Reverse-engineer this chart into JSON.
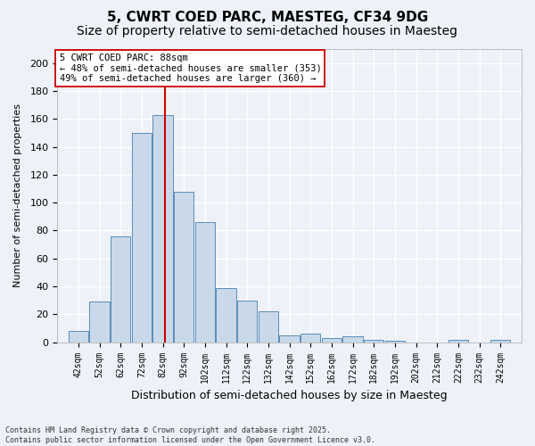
{
  "title1": "5, CWRT COED PARC, MAESTEG, CF34 9DG",
  "title2": "Size of property relative to semi-detached houses in Maesteg",
  "xlabel": "Distribution of semi-detached houses by size in Maesteg",
  "ylabel": "Number of semi-detached properties",
  "bins": [
    42,
    52,
    62,
    72,
    82,
    92,
    102,
    112,
    122,
    132,
    142,
    152,
    162,
    172,
    182,
    192,
    202,
    212,
    222,
    232,
    242
  ],
  "bin_labels": [
    "42sqm",
    "52sqm",
    "62sqm",
    "72sqm",
    "82sqm",
    "92sqm",
    "102sqm",
    "112sqm",
    "122sqm",
    "132sqm",
    "142sqm",
    "152sqm",
    "162sqm",
    "172sqm",
    "182sqm",
    "192sqm",
    "202sqm",
    "212sqm",
    "222sqm",
    "232sqm",
    "242sqm"
  ],
  "counts": [
    8,
    29,
    76,
    150,
    163,
    108,
    86,
    39,
    30,
    22,
    5,
    6,
    3,
    4,
    2,
    1,
    0,
    0,
    2,
    0,
    2
  ],
  "bar_color": "#c9d9ea",
  "bar_edge_color": "#5b8db8",
  "property_size": 88,
  "vline_color": "#cc0000",
  "annotation_line1": "5 CWRT COED PARC: 88sqm",
  "annotation_line2": "← 48% of semi-detached houses are smaller (353)",
  "annotation_line3": "49% of semi-detached houses are larger (360) →",
  "annotation_box_color": "#ffffff",
  "annotation_box_edge": "#cc0000",
  "ylim": [
    0,
    210
  ],
  "yticks": [
    0,
    20,
    40,
    60,
    80,
    100,
    120,
    140,
    160,
    180,
    200
  ],
  "footer": "Contains HM Land Registry data © Crown copyright and database right 2025.\nContains public sector information licensed under the Open Government Licence v3.0.",
  "background_color": "#eef2f8",
  "grid_color": "#ffffff",
  "title1_fontsize": 11,
  "title2_fontsize": 10
}
